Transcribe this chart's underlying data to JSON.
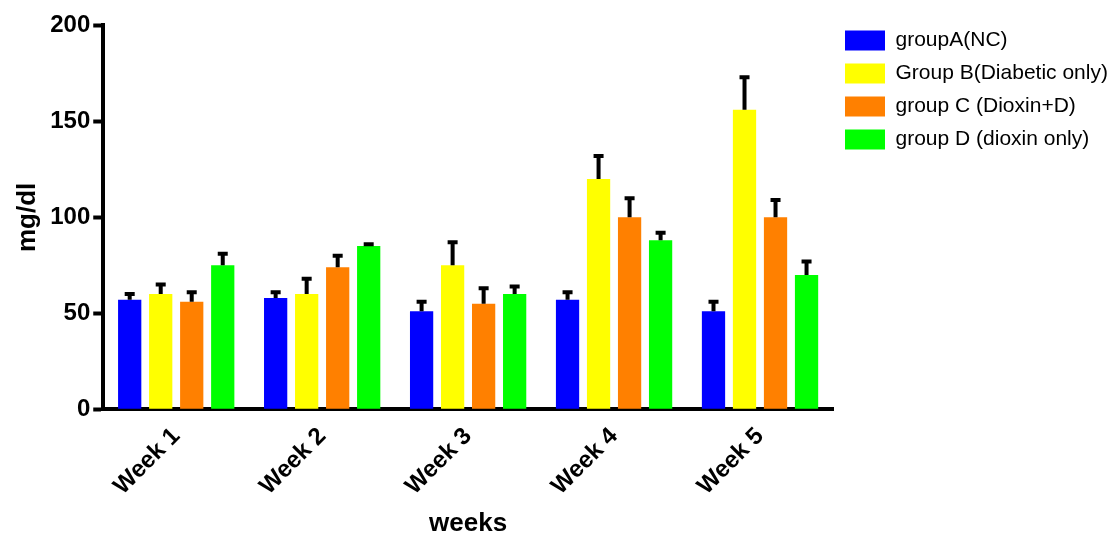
{
  "chart_data": {
    "type": "bar",
    "xlabel": "weeks",
    "ylabel": "mg/dl",
    "categories": [
      "Week 1",
      "Week 2",
      "Week 3",
      "Week 4",
      "Week 5"
    ],
    "series": [
      {
        "name": "groupA(NC)",
        "color": "#0000ff",
        "values": [
          57,
          58,
          51,
          57,
          51
        ],
        "errors": [
          [
            57,
            60
          ],
          [
            58,
            61
          ],
          [
            51,
            56
          ],
          [
            57,
            61
          ],
          [
            51,
            56
          ]
        ]
      },
      {
        "name": "Group B(Diabetic only)",
        "color": "#ffff00",
        "values": [
          60,
          60,
          75,
          120,
          156
        ],
        "errors": [
          [
            60,
            65
          ],
          [
            60,
            68
          ],
          [
            75,
            87
          ],
          [
            120,
            132
          ],
          [
            156,
            173
          ]
        ]
      },
      {
        "name": "group C (Dioxin+D)",
        "color": "#ff8000",
        "values": [
          56,
          74,
          55,
          100,
          100
        ],
        "errors": [
          [
            56,
            61
          ],
          [
            74,
            80
          ],
          [
            55,
            63
          ],
          [
            100,
            110
          ],
          [
            100,
            109
          ]
        ]
      },
      {
        "name": "group D (dioxin only)",
        "color": "#00ff00",
        "values": [
          75,
          85,
          60,
          88,
          70
        ],
        "errors": [
          [
            75,
            81
          ],
          [
            85,
            86
          ],
          [
            60,
            64
          ],
          [
            88,
            92
          ],
          [
            70,
            77
          ]
        ]
      }
    ],
    "ylim": [
      0,
      200
    ],
    "yticks": [
      0,
      50,
      100,
      150,
      200
    ],
    "grid": false,
    "legend": "top right"
  }
}
